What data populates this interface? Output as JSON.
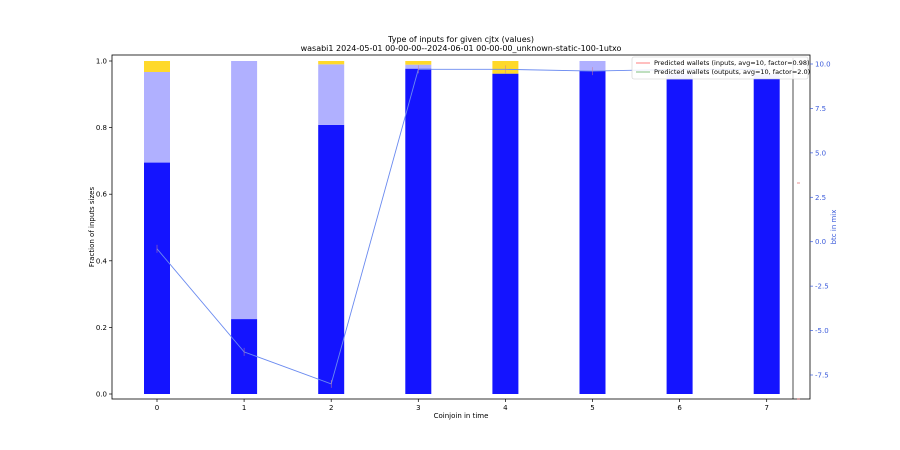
{
  "chart_data": {
    "type": "bar",
    "title": "Type of inputs for given cjtx (values)",
    "subtitle": "wasabi1 2024-05-01 00-00-00--2024-06-01 00-00-00_unknown-static-100-1utxo",
    "xlabel": "Coinjoin in time",
    "ylabel": "Fraction of inputs sizes",
    "y2label": "btc in mix",
    "ylim": [
      0,
      1.0
    ],
    "y2lim": [
      -9.5,
      10.5
    ],
    "categories": [
      "0",
      "1",
      "2",
      "3",
      "4",
      "5",
      "6",
      "7"
    ],
    "yticks": [
      "0.0",
      "0.2",
      "0.4",
      "0.6",
      "0.8",
      "1.0"
    ],
    "y2ticks": [
      "-7.5",
      "-5.0",
      "-2.5",
      "0.0",
      "2.5",
      "5.0",
      "7.5",
      "10.0"
    ],
    "stacked": true,
    "series": [
      {
        "values": [
          0.695,
          0.225,
          0.808,
          0.977,
          0.962,
          0.97,
          0.945,
          0.948
        ],
        "color": "#1414ff"
      },
      {
        "values": [
          0.272,
          0.775,
          0.182,
          0.012,
          0.0,
          0.03,
          0.015,
          0.012
        ],
        "color": "#b0b0ff"
      },
      {
        "values": [
          0.033,
          0.0,
          0.01,
          0.011,
          0.038,
          0.0,
          0.0,
          0.0
        ],
        "color": "#ffd92a"
      }
    ],
    "line": {
      "axis": "right",
      "values": [
        -0.4,
        -6.2,
        -8.0,
        9.7,
        9.7,
        9.6,
        9.7,
        9.7
      ],
      "color": "#6a8af0"
    },
    "legend": {
      "placement": "top-right",
      "entries": [
        {
          "label": "Predicted wallets (inputs, avg=10, factor=0.98)",
          "color": "#ff7f7f"
        },
        {
          "label": "Predicted wallets (outputs, avg=10, factor=2.0)",
          "color": "#7fbf7f"
        }
      ]
    }
  }
}
